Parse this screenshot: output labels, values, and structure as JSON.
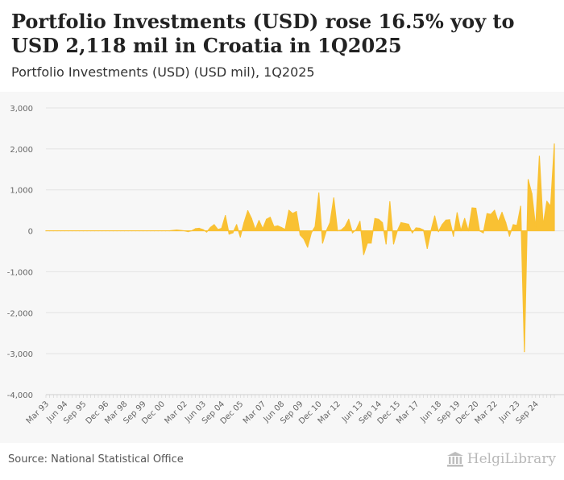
{
  "header": {
    "title": "Portfolio Investments (USD) rose 16.5% yoy to USD 2,118 mil in Croatia in 1Q2025",
    "subtitle": "Portfolio Investments (USD) (USD mil), 1Q2025"
  },
  "footer": {
    "source": "Source: National Statistical Office",
    "logo_text": "HelgiLibrary"
  },
  "colors": {
    "fill": "#f9c133",
    "grid": "#e3e3e3",
    "background": "#f7f7f7",
    "tick_text": "#666666"
  },
  "chart_data": {
    "type": "area",
    "title": "Portfolio Investments (USD) (USD mil), 1Q2025",
    "xlabel": "",
    "ylabel": "",
    "ylim": [
      -4000,
      3000
    ],
    "yticks": [
      3000,
      2000,
      1000,
      0,
      -1000,
      -2000,
      -3000,
      -4000
    ],
    "ytick_labels": [
      "3,000",
      "2,000",
      "1,000",
      "0",
      "-1,000",
      "-2,000",
      "-3,000",
      "-4,000"
    ],
    "xtick_labels": [
      "Mar 93",
      "Jun 94",
      "Sep 95",
      "Dec 96",
      "Mar 98",
      "Sep 99",
      "Dec 00",
      "Mar 02",
      "Jun 03",
      "Sep 04",
      "Dec 05",
      "Mar 07",
      "Jun 08",
      "Sep 09",
      "Dec 10",
      "Mar 12",
      "Jun 13",
      "Sep 14",
      "Dec 15",
      "Mar 17",
      "Jun 18",
      "Sep 19",
      "Dec 20",
      "Mar 22",
      "Jun 23",
      "Sep 24"
    ],
    "grid": true,
    "legend": "none",
    "series": [
      {
        "name": "Portfolio Investments (USD)",
        "frequency": "quarterly",
        "start": "1Q1993",
        "end": "1Q2025",
        "values": [
          0,
          0,
          0,
          0,
          0,
          0,
          0,
          0,
          0,
          0,
          0,
          0,
          0,
          0,
          0,
          0,
          0,
          0,
          0,
          0,
          0,
          0,
          0,
          0,
          0,
          0,
          0,
          0,
          0,
          0,
          0,
          0,
          0,
          0,
          10,
          20,
          10,
          0,
          -20,
          0,
          50,
          60,
          30,
          -30,
          80,
          150,
          30,
          60,
          370,
          -80,
          -50,
          150,
          -150,
          200,
          490,
          300,
          30,
          250,
          50,
          280,
          330,
          100,
          120,
          80,
          30,
          500,
          420,
          470,
          -100,
          -200,
          -400,
          -50,
          100,
          920,
          -300,
          0,
          200,
          800,
          0,
          20,
          100,
          280,
          -50,
          30,
          230,
          -580,
          -300,
          -300,
          300,
          280,
          200,
          -320,
          710,
          -320,
          0,
          200,
          180,
          160,
          -50,
          70,
          60,
          20,
          -430,
          0,
          360,
          -20,
          150,
          260,
          270,
          -130,
          440,
          0,
          300,
          0,
          560,
          550,
          0,
          -50,
          420,
          400,
          500,
          220,
          450,
          200,
          -130,
          150,
          130,
          600,
          -2950,
          1250,
          900,
          80,
          1820,
          130,
          720,
          600,
          2118
        ]
      }
    ]
  }
}
